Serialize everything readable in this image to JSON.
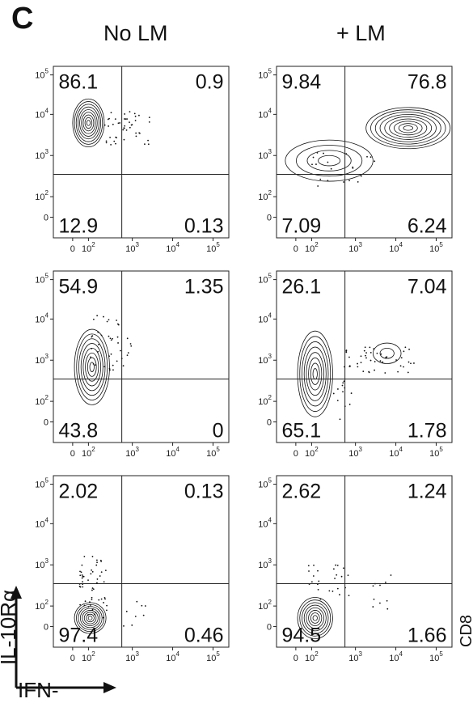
{
  "panel_letter": "C",
  "columns": [
    "No LM",
    "+ LM"
  ],
  "axes": {
    "x_label": "IFN-",
    "y_label": "IL-10Rα",
    "right_label": "CD8",
    "x_ticks": [
      {
        "base": "0",
        "exp": ""
      },
      {
        "base": "10",
        "exp": "2"
      },
      {
        "base": "10",
        "exp": "3"
      },
      {
        "base": "10",
        "exp": "4"
      },
      {
        "base": "10",
        "exp": "5"
      }
    ],
    "y_ticks": [
      {
        "base": "0",
        "exp": ""
      },
      {
        "base": "10",
        "exp": "2"
      },
      {
        "base": "10",
        "exp": "3"
      },
      {
        "base": "10",
        "exp": "4"
      },
      {
        "base": "10",
        "exp": "5"
      }
    ]
  },
  "chart_data": [
    {
      "type": "contour",
      "row": 1,
      "column": "No LM",
      "quadrants": {
        "upper_left": "86.1",
        "upper_right": "0.9",
        "lower_left": "12.9",
        "lower_right": "0.13"
      }
    },
    {
      "type": "contour",
      "row": 1,
      "column": "+ LM",
      "quadrants": {
        "upper_left": "9.84",
        "upper_right": "76.8",
        "lower_left": "7.09",
        "lower_right": "6.24"
      }
    },
    {
      "type": "contour",
      "row": 2,
      "column": "No LM",
      "quadrants": {
        "upper_left": "54.9",
        "upper_right": "1.35",
        "lower_left": "43.8",
        "lower_right": "0"
      }
    },
    {
      "type": "contour",
      "row": 2,
      "column": "+ LM",
      "quadrants": {
        "upper_left": "26.1",
        "upper_right": "7.04",
        "lower_left": "65.1",
        "lower_right": "1.78"
      }
    },
    {
      "type": "contour",
      "row": 3,
      "column": "No LM",
      "quadrants": {
        "upper_left": "2.02",
        "upper_right": "0.13",
        "lower_left": "97.4",
        "lower_right": "0.46"
      }
    },
    {
      "type": "contour",
      "row": 3,
      "column": "+ LM",
      "quadrants": {
        "upper_left": "2.62",
        "upper_right": "1.24",
        "lower_left": "94.5",
        "lower_right": "1.66"
      }
    }
  ]
}
